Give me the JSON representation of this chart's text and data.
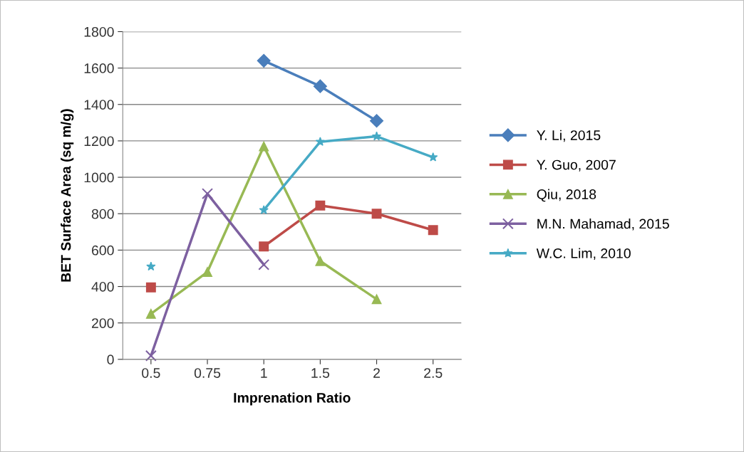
{
  "chart_data": {
    "type": "line",
    "xlabel": "Imprenation Ratio",
    "ylabel": "BET Surface Area (sq m/g)",
    "categories": [
      "0.5",
      "0.75",
      "1",
      "1.5",
      "2",
      "2.5"
    ],
    "ylim": [
      0,
      1800
    ],
    "yticks": [
      0,
      200,
      400,
      600,
      800,
      1000,
      1200,
      1400,
      1600,
      1800
    ],
    "grid": "y",
    "legend": "right",
    "series": [
      {
        "name": "Y. Li, 2015",
        "color": "#4a7ebb",
        "marker": "diamond",
        "values": [
          null,
          null,
          1640,
          1500,
          1310,
          null
        ]
      },
      {
        "name": "Y. Guo, 2007",
        "color": "#be4b48",
        "marker": "square",
        "values": [
          395,
          null,
          620,
          845,
          800,
          710
        ]
      },
      {
        "name": "Qiu, 2018",
        "color": "#98b954",
        "marker": "triangle",
        "values": [
          250,
          480,
          1170,
          540,
          330,
          null
        ]
      },
      {
        "name": "M.N. Mahamad, 2015",
        "color": "#7d60a0",
        "marker": "cross",
        "values": [
          20,
          910,
          520,
          null,
          null,
          null
        ]
      },
      {
        "name": "W.C. Lim, 2010",
        "color": "#46aac5",
        "marker": "star",
        "values": [
          510,
          null,
          820,
          1195,
          1225,
          1110
        ]
      }
    ]
  }
}
